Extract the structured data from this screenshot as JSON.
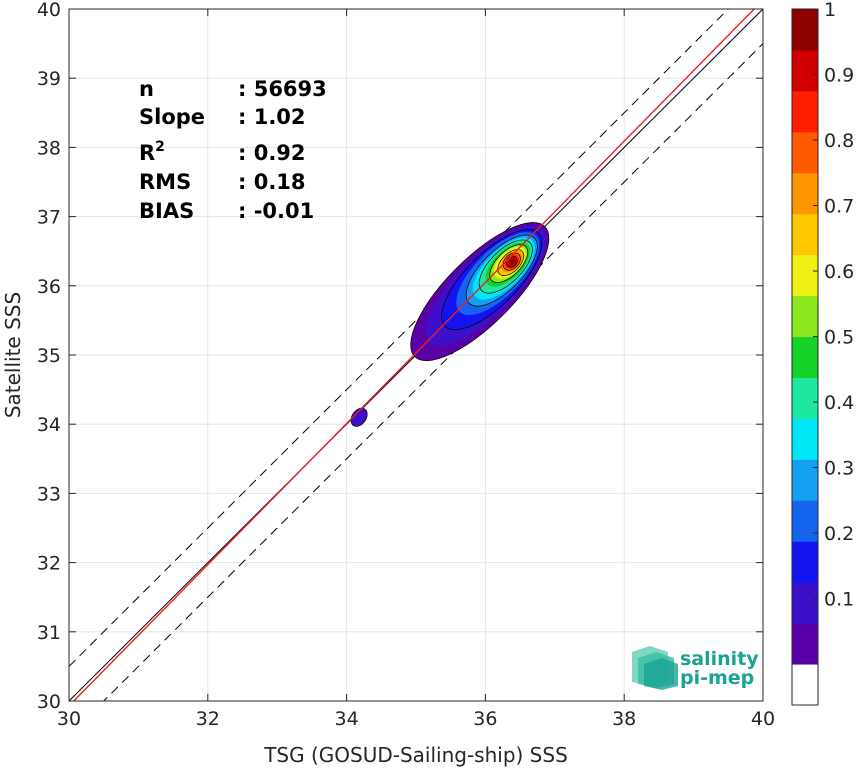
{
  "chart_data": {
    "type": "scatter",
    "title": "",
    "xlabel": "TSG (GOSUD-Sailing-ship) SSS",
    "ylabel": "Satellite SSS",
    "xlim": [
      30,
      40
    ],
    "ylim": [
      30,
      40
    ],
    "xticks": [
      "30",
      "32",
      "34",
      "36",
      "38",
      "40"
    ],
    "yticks": [
      "30",
      "31",
      "32",
      "33",
      "34",
      "35",
      "36",
      "37",
      "38",
      "39",
      "40"
    ],
    "grid": true,
    "reference_lines": [
      {
        "name": "one-to-one",
        "intercept": 0,
        "slope": 1,
        "color": "#000000",
        "style": "solid"
      },
      {
        "name": "plus-bound",
        "intercept": 0.5,
        "slope": 1,
        "color": "#000000",
        "style": "dashed"
      },
      {
        "name": "minus-bound",
        "intercept": -0.5,
        "slope": 1,
        "color": "#000000",
        "style": "dashed"
      },
      {
        "name": "regression",
        "x": [
          30,
          40
        ],
        "y": [
          29.93,
          40.13
        ],
        "color": "#e8202a",
        "style": "solid"
      }
    ],
    "density_contours": {
      "center": [
        36.38,
        36.35
      ],
      "levels": [
        0.05,
        0.1,
        0.2,
        0.3,
        0.4,
        0.5,
        0.6,
        0.7,
        0.8,
        0.9
      ],
      "secondary_cluster": {
        "center": [
          34.18,
          34.1
        ],
        "level": 0.05
      }
    },
    "stats": [
      {
        "label": "n",
        "value": ": 56693"
      },
      {
        "label": "Slope",
        "value": ": 1.02"
      },
      {
        "label": "R",
        "sup": "2",
        "value": ": 0.92"
      },
      {
        "label": "RMS",
        "value": ": 0.18"
      },
      {
        "label": "BIAS",
        "value": ": -0.01"
      }
    ],
    "colorbar": {
      "range": [
        0,
        1
      ],
      "ticks": [
        "0.1",
        "0.2",
        "0.3",
        "0.4",
        "0.5",
        "0.6",
        "0.7",
        "0.8",
        "0.9",
        "1"
      ],
      "colors": [
        "#ffffff",
        "#5a00a8",
        "#3c10c8",
        "#1414f0",
        "#1464f0",
        "#14a0f0",
        "#00e8f5",
        "#1ee8a0",
        "#14d228",
        "#8ce81e",
        "#f0f014",
        "#ffc800",
        "#ff9600",
        "#ff5a00",
        "#ff1e00",
        "#d20000",
        "#8c0000"
      ]
    }
  },
  "logo": {
    "line1": "salinity",
    "line2": "pi-mep"
  }
}
